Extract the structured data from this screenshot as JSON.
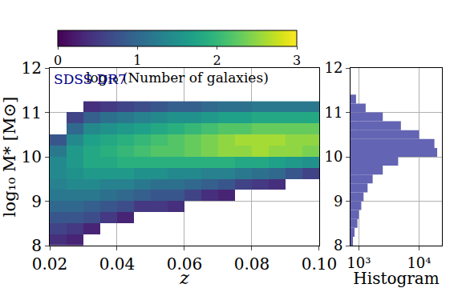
{
  "chart_data": [
    {
      "type": "heatmap",
      "x_label": "z",
      "y_label": "log₁₀ M* [M⊙]",
      "annotation": "SDSS DR7",
      "color": "Viridis",
      "x_bins": [
        0.02,
        0.025,
        0.03,
        0.035,
        0.04,
        0.045,
        0.05,
        0.055,
        0.06,
        0.065,
        0.07,
        0.075,
        0.08,
        0.085,
        0.09,
        0.095,
        0.1
      ],
      "y_bins": [
        8,
        8.25,
        8.5,
        8.75,
        9,
        9.25,
        9.5,
        9.75,
        10,
        10.25,
        10.5,
        10.75,
        11,
        11.25
      ],
      "cells": [
        [
          0.4,
          0.3,
          null,
          null,
          null,
          null,
          null,
          null,
          null,
          null,
          null,
          null,
          null,
          null,
          null,
          null
        ],
        [
          0.6,
          0.5,
          0.3,
          null,
          null,
          null,
          null,
          null,
          null,
          null,
          null,
          null,
          null,
          null,
          null,
          null
        ],
        [
          0.8,
          0.8,
          0.7,
          0.5,
          0.3,
          null,
          null,
          null,
          null,
          null,
          null,
          null,
          null,
          null,
          null,
          null
        ],
        [
          1.0,
          1.0,
          0.9,
          0.8,
          0.7,
          0.5,
          0.5,
          0.4,
          null,
          null,
          null,
          null,
          null,
          null,
          null,
          null
        ],
        [
          1.2,
          1.2,
          1.2,
          1.1,
          1.0,
          0.9,
          0.8,
          0.8,
          0.6,
          0.4,
          0.3,
          null,
          null,
          null,
          null,
          null
        ],
        [
          1.3,
          1.4,
          1.4,
          1.3,
          1.3,
          1.2,
          1.1,
          1.1,
          1.0,
          0.9,
          0.8,
          0.6,
          0.5,
          0.4,
          null,
          null
        ],
        [
          1.4,
          1.5,
          1.6,
          1.6,
          1.6,
          1.5,
          1.5,
          1.4,
          1.4,
          1.3,
          1.3,
          1.2,
          1.1,
          1.0,
          0.8,
          0.6
        ],
        [
          1.4,
          1.6,
          1.8,
          1.8,
          1.9,
          1.9,
          1.9,
          1.9,
          1.9,
          1.9,
          1.9,
          1.8,
          1.8,
          1.7,
          1.6,
          1.5
        ],
        [
          1.2,
          1.6,
          1.8,
          1.9,
          2.0,
          2.1,
          2.2,
          2.2,
          2.3,
          2.4,
          2.5,
          2.5,
          2.6,
          2.5,
          2.5,
          2.4
        ],
        [
          0.8,
          1.4,
          1.7,
          1.8,
          1.9,
          2.0,
          2.1,
          2.2,
          2.3,
          2.4,
          2.5,
          2.6,
          2.6,
          2.6,
          2.5,
          2.5
        ],
        [
          null,
          1.0,
          1.4,
          1.5,
          1.6,
          1.7,
          1.8,
          1.9,
          2.0,
          2.1,
          2.2,
          2.2,
          2.3,
          2.3,
          2.3,
          2.3
        ],
        [
          null,
          0.6,
          0.9,
          1.1,
          1.2,
          1.3,
          1.4,
          1.5,
          1.5,
          1.6,
          1.7,
          1.7,
          1.8,
          1.8,
          1.8,
          1.8
        ],
        [
          null,
          null,
          0.4,
          0.5,
          0.6,
          0.7,
          0.8,
          0.9,
          0.9,
          1.0,
          1.1,
          1.1,
          1.2,
          1.2,
          1.2,
          1.2
        ]
      ],
      "colorbar": {
        "title": "log₁₀ (Number of galaxies)",
        "range": [
          0,
          3
        ],
        "ticks": [
          0,
          1,
          2,
          3
        ]
      },
      "xlim": [
        0.02,
        0.1
      ],
      "xticks": [
        0.02,
        0.04,
        0.06,
        0.08,
        {
          "value": 0.1,
          "label": "0.10"
        }
      ],
      "ylim": [
        8,
        12
      ],
      "yticks": [
        8,
        9,
        10,
        11,
        12
      ],
      "grid": true
    },
    {
      "type": "bar",
      "orientation": "horizontal",
      "log": "x",
      "x_label": "Histogram",
      "color": "#6464b4",
      "bins": [
        8,
        8.2,
        8.4,
        8.6,
        8.8,
        9,
        9.2,
        9.4,
        9.6,
        9.8,
        10,
        10.2,
        10.4,
        10.6,
        10.8,
        11,
        11.2,
        11.4
      ],
      "values": [
        800,
        850,
        950,
        1000,
        1100,
        1200,
        1400,
        1700,
        2500,
        4500,
        20000,
        18000,
        10000,
        5000,
        2500,
        1300,
        900
      ],
      "xlim": [
        730,
        24000
      ],
      "xticks": [
        {
          "value": 1000,
          "label": "10³"
        },
        {
          "value": 10000,
          "label": "10⁴"
        }
      ],
      "ylim": [
        8,
        12
      ],
      "yticks": [
        8,
        9,
        10,
        11,
        12
      ],
      "grid": true
    }
  ]
}
